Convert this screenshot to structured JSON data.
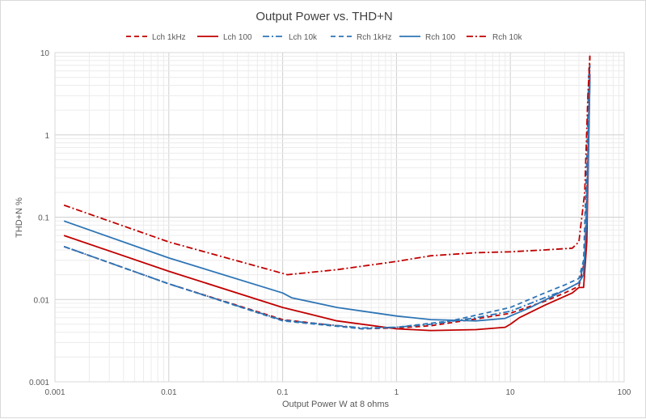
{
  "chart_data": {
    "type": "line",
    "title": "Output Power vs. THD+N",
    "xlabel": "Output Power W at 8 ohms",
    "ylabel": "THD+N %",
    "x_scale": "log",
    "y_scale": "log",
    "xlim": [
      0.001,
      100
    ],
    "ylim": [
      0.001,
      10
    ],
    "x_ticks": [
      "0.001",
      "0.01",
      "0.1",
      "1",
      "10",
      "100"
    ],
    "y_ticks": [
      "0.001",
      "0.01",
      "0.1",
      "1",
      "10"
    ],
    "grid": true,
    "legend_position": "top",
    "series": [
      {
        "name": "Lch 1kHz",
        "color": "#c00000",
        "dash": "dashed",
        "points": [
          [
            0.0012,
            0.044
          ],
          [
            0.01,
            0.0155
          ],
          [
            0.1,
            0.0057
          ],
          [
            0.5,
            0.0044
          ],
          [
            1,
            0.0045
          ],
          [
            2,
            0.0048
          ],
          [
            5,
            0.0058
          ],
          [
            10,
            0.0068
          ],
          [
            20,
            0.0095
          ],
          [
            30,
            0.012
          ],
          [
            40,
            0.0145
          ],
          [
            45,
            0.03
          ],
          [
            48,
            0.5
          ],
          [
            50,
            9.5
          ]
        ]
      },
      {
        "name": "Lch 100",
        "color": "#c00000",
        "dash": "solid",
        "points": [
          [
            0.0012,
            0.06
          ],
          [
            0.01,
            0.022
          ],
          [
            0.1,
            0.008
          ],
          [
            0.3,
            0.0055
          ],
          [
            1,
            0.0044
          ],
          [
            2,
            0.0042
          ],
          [
            5,
            0.0043
          ],
          [
            9,
            0.0046
          ],
          [
            10,
            0.005
          ],
          [
            12,
            0.006
          ],
          [
            20,
            0.0085
          ],
          [
            35,
            0.012
          ],
          [
            40,
            0.014
          ],
          [
            44,
            0.014
          ],
          [
            47,
            0.05
          ],
          [
            50,
            5.5
          ]
        ]
      },
      {
        "name": "Lch 10k",
        "color": "#2e75b6",
        "dash": "dashdot",
        "points": [
          [
            0.0012,
            0.044
          ],
          [
            0.01,
            0.0155
          ],
          [
            0.1,
            0.0056
          ],
          [
            0.5,
            0.0045
          ],
          [
            1,
            0.0046
          ],
          [
            2,
            0.005
          ],
          [
            5,
            0.006
          ],
          [
            10,
            0.0072
          ],
          [
            20,
            0.0105
          ],
          [
            30,
            0.013
          ],
          [
            40,
            0.016
          ],
          [
            45,
            0.03
          ],
          [
            48,
            0.5
          ],
          [
            50,
            7
          ]
        ]
      },
      {
        "name": "Rch 1kHz",
        "color": "#2e75b6",
        "dash": "dashed",
        "points": [
          [
            0.0012,
            0.044
          ],
          [
            0.01,
            0.0155
          ],
          [
            0.1,
            0.0055
          ],
          [
            0.5,
            0.0044
          ],
          [
            1,
            0.0046
          ],
          [
            3,
            0.0055
          ],
          [
            10,
            0.008
          ],
          [
            20,
            0.012
          ],
          [
            30,
            0.015
          ],
          [
            40,
            0.018
          ],
          [
            44,
            0.03
          ],
          [
            47,
            0.5
          ],
          [
            49,
            6.5
          ]
        ]
      },
      {
        "name": "Rch 100",
        "color": "#2e75b6",
        "dash": "solid",
        "points": [
          [
            0.0012,
            0.09
          ],
          [
            0.01,
            0.032
          ],
          [
            0.1,
            0.012
          ],
          [
            0.12,
            0.0105
          ],
          [
            0.3,
            0.008
          ],
          [
            1,
            0.0063
          ],
          [
            2,
            0.0057
          ],
          [
            5,
            0.0055
          ],
          [
            9,
            0.0059
          ],
          [
            10,
            0.0063
          ],
          [
            15,
            0.008
          ],
          [
            30,
            0.013
          ],
          [
            40,
            0.016
          ],
          [
            44,
            0.02
          ],
          [
            47,
            0.1
          ],
          [
            50,
            4.5
          ]
        ]
      },
      {
        "name": "Rch 10k",
        "color": "#c00000",
        "dash": "dashdot",
        "points": [
          [
            0.0012,
            0.14
          ],
          [
            0.01,
            0.05
          ],
          [
            0.11,
            0.02
          ],
          [
            0.3,
            0.023
          ],
          [
            1,
            0.029
          ],
          [
            2,
            0.034
          ],
          [
            5,
            0.037
          ],
          [
            10,
            0.038
          ],
          [
            20,
            0.04
          ],
          [
            35,
            0.042
          ],
          [
            40,
            0.05
          ],
          [
            45,
            0.2
          ],
          [
            48,
            3
          ],
          [
            50,
            9
          ]
        ]
      }
    ]
  }
}
